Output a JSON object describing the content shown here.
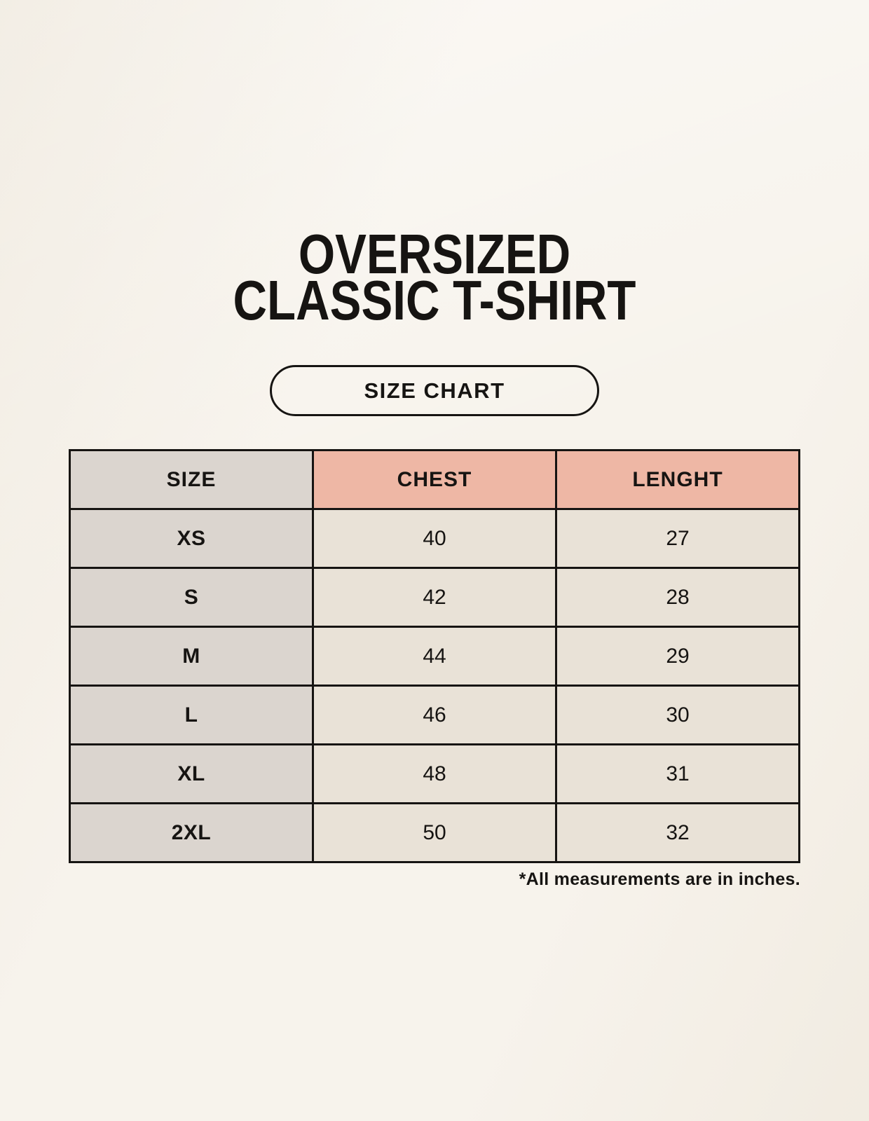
{
  "page": {
    "title_line1": "OVERSIZED",
    "title_line2": "CLASSIC T-SHIRT",
    "badge_label": "SIZE CHART",
    "footnote": "*All measurements are in inches."
  },
  "colors": {
    "background": "#f7f3ec",
    "header_size_bg": "#dbd5cf",
    "header_measure_bg": "#eeb7a5",
    "row_label_bg": "#dbd5cf",
    "cell_bg": "#e9e2d7",
    "border": "#161412",
    "text": "#161412"
  },
  "chart_data": {
    "type": "table",
    "title": "OVERSIZED CLASSIC T-SHIRT",
    "subtitle": "SIZE CHART",
    "columns": [
      "SIZE",
      "CHEST",
      "LENGHT"
    ],
    "rows": [
      {
        "size": "XS",
        "chest": "40",
        "length": "27"
      },
      {
        "size": "S",
        "chest": "42",
        "length": "28"
      },
      {
        "size": "M",
        "chest": "44",
        "length": "29"
      },
      {
        "size": "L",
        "chest": "46",
        "length": "30"
      },
      {
        "size": "XL",
        "chest": "48",
        "length": "31"
      },
      {
        "size": "2XL",
        "chest": "50",
        "length": "32"
      }
    ],
    "units_note": "*All measurements are in inches."
  }
}
